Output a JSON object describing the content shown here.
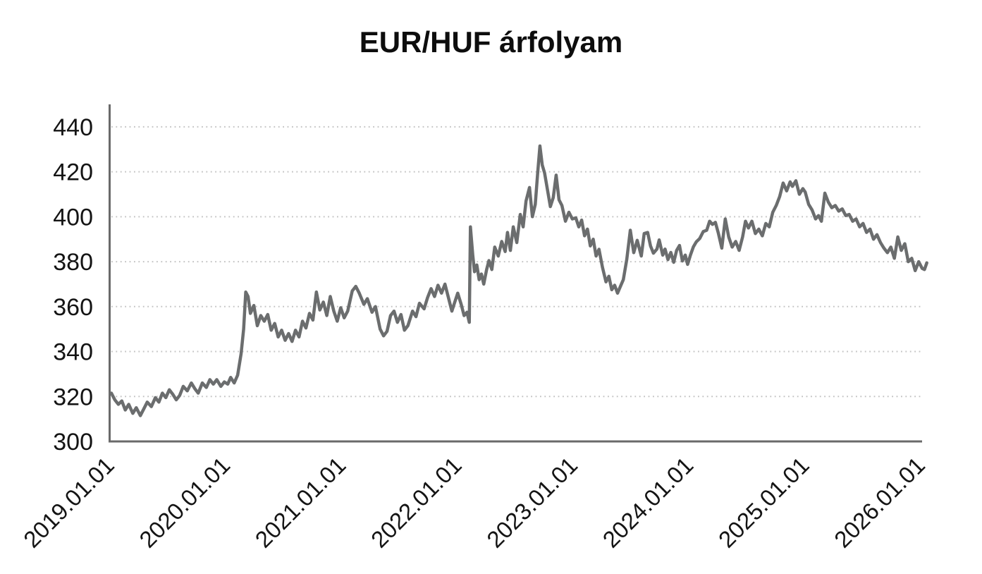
{
  "chart_data": {
    "type": "line",
    "title": "EUR/HUF árfolyam",
    "legend": "none",
    "grid": {
      "show": true,
      "style": "dotted",
      "color": "#c3c3c3"
    },
    "axis_color": "#6a6a6a",
    "label_color": "#141414",
    "y_axis": {
      "min": 300,
      "max": 450,
      "tick_step": 20,
      "tick_labels": [
        "300",
        "320",
        "340",
        "360",
        "380",
        "400",
        "420",
        "440"
      ],
      "tick_values": [
        300,
        320,
        340,
        360,
        380,
        400,
        420,
        440
      ]
    },
    "x_axis": {
      "range_years": [
        0,
        7.05
      ],
      "ticks": [
        {
          "label": "2019.01.01",
          "t": 0
        },
        {
          "label": "2020.01.01",
          "t": 1
        },
        {
          "label": "2021.01.01",
          "t": 2
        },
        {
          "label": "2022.01.01",
          "t": 3
        },
        {
          "label": "2023.01.01",
          "t": 4
        },
        {
          "label": "2024.01.01",
          "t": 5
        },
        {
          "label": "2025.01.01",
          "t": 6
        },
        {
          "label": "2026.01.01",
          "t": 7
        }
      ]
    },
    "series": [
      {
        "name": "EUR/HUF",
        "color": "#6b6d6e",
        "stroke_width": 4.5,
        "points": [
          [
            0,
            321.5
          ],
          [
            0.03,
            318.5
          ],
          [
            0.06,
            316.5
          ],
          [
            0.09,
            318
          ],
          [
            0.12,
            314
          ],
          [
            0.15,
            316.5
          ],
          [
            0.185,
            312.5
          ],
          [
            0.215,
            315
          ],
          [
            0.25,
            311.5
          ],
          [
            0.28,
            314.5
          ],
          [
            0.31,
            317.5
          ],
          [
            0.345,
            315.5
          ],
          [
            0.38,
            319.5
          ],
          [
            0.41,
            317.5
          ],
          [
            0.44,
            321.5
          ],
          [
            0.47,
            319.5
          ],
          [
            0.5,
            323
          ],
          [
            0.53,
            321
          ],
          [
            0.56,
            318.5
          ],
          [
            0.59,
            320.5
          ],
          [
            0.62,
            324.5
          ],
          [
            0.655,
            322.5
          ],
          [
            0.69,
            326
          ],
          [
            0.72,
            323.5
          ],
          [
            0.75,
            321.5
          ],
          [
            0.785,
            326
          ],
          [
            0.82,
            324
          ],
          [
            0.85,
            327.5
          ],
          [
            0.88,
            325.5
          ],
          [
            0.91,
            327.5
          ],
          [
            0.945,
            324.5
          ],
          [
            0.975,
            326.5
          ],
          [
            1.005,
            325.5
          ],
          [
            1.03,
            328.5
          ],
          [
            1.06,
            326
          ],
          [
            1.09,
            329.5
          ],
          [
            1.12,
            339
          ],
          [
            1.142,
            350
          ],
          [
            1.16,
            366.5
          ],
          [
            1.18,
            364.5
          ],
          [
            1.2,
            357
          ],
          [
            1.23,
            360.5
          ],
          [
            1.26,
            351.5
          ],
          [
            1.29,
            356
          ],
          [
            1.32,
            353.5
          ],
          [
            1.35,
            356.5
          ],
          [
            1.38,
            349.5
          ],
          [
            1.41,
            352.5
          ],
          [
            1.44,
            346.5
          ],
          [
            1.47,
            349.5
          ],
          [
            1.5,
            345
          ],
          [
            1.53,
            348
          ],
          [
            1.56,
            344.5
          ],
          [
            1.59,
            349.5
          ],
          [
            1.62,
            346.5
          ],
          [
            1.65,
            353.5
          ],
          [
            1.68,
            350.5
          ],
          [
            1.71,
            357
          ],
          [
            1.74,
            354
          ],
          [
            1.77,
            366.5
          ],
          [
            1.8,
            358.5
          ],
          [
            1.83,
            362
          ],
          [
            1.86,
            356
          ],
          [
            1.89,
            364.5
          ],
          [
            1.92,
            358
          ],
          [
            1.95,
            353.5
          ],
          [
            1.98,
            359.5
          ],
          [
            2.01,
            355
          ],
          [
            2.04,
            358
          ],
          [
            2.08,
            367
          ],
          [
            2.11,
            369
          ],
          [
            2.14,
            366
          ],
          [
            2.18,
            361
          ],
          [
            2.21,
            363.5
          ],
          [
            2.25,
            357.5
          ],
          [
            2.28,
            360
          ],
          [
            2.32,
            350
          ],
          [
            2.35,
            347
          ],
          [
            2.38,
            349
          ],
          [
            2.41,
            356
          ],
          [
            2.44,
            358
          ],
          [
            2.47,
            353
          ],
          [
            2.5,
            356.5
          ],
          [
            2.53,
            349.5
          ],
          [
            2.56,
            351.5
          ],
          [
            2.6,
            358
          ],
          [
            2.63,
            355.5
          ],
          [
            2.66,
            361.5
          ],
          [
            2.7,
            359
          ],
          [
            2.73,
            364
          ],
          [
            2.76,
            368
          ],
          [
            2.79,
            364.5
          ],
          [
            2.82,
            369.5
          ],
          [
            2.85,
            366
          ],
          [
            2.88,
            370
          ],
          [
            2.91,
            364
          ],
          [
            2.94,
            358
          ],
          [
            2.965,
            362
          ],
          [
            2.99,
            366
          ],
          [
            3.02,
            361
          ],
          [
            3.045,
            356
          ],
          [
            3.07,
            357.5
          ],
          [
            3.09,
            353
          ],
          [
            3.1,
            395.5
          ],
          [
            3.12,
            383
          ],
          [
            3.135,
            375.5
          ],
          [
            3.155,
            378.5
          ],
          [
            3.175,
            372
          ],
          [
            3.195,
            374.5
          ],
          [
            3.215,
            370
          ],
          [
            3.24,
            376.5
          ],
          [
            3.26,
            380.5
          ],
          [
            3.285,
            376.5
          ],
          [
            3.31,
            386.5
          ],
          [
            3.34,
            382.5
          ],
          [
            3.37,
            389
          ],
          [
            3.4,
            384.5
          ],
          [
            3.42,
            393
          ],
          [
            3.445,
            385
          ],
          [
            3.47,
            395.5
          ],
          [
            3.5,
            388.5
          ],
          [
            3.53,
            401
          ],
          [
            3.555,
            395.5
          ],
          [
            3.58,
            407
          ],
          [
            3.61,
            413
          ],
          [
            3.635,
            400
          ],
          [
            3.66,
            405.5
          ],
          [
            3.68,
            419
          ],
          [
            3.7,
            431.5
          ],
          [
            3.72,
            423
          ],
          [
            3.74,
            419.5
          ],
          [
            3.765,
            412
          ],
          [
            3.79,
            404.5
          ],
          [
            3.815,
            408.5
          ],
          [
            3.84,
            418.5
          ],
          [
            3.865,
            407.5
          ],
          [
            3.89,
            405
          ],
          [
            3.92,
            398
          ],
          [
            3.95,
            402
          ],
          [
            3.98,
            399
          ],
          [
            4.01,
            399.5
          ],
          [
            4.035,
            395.5
          ],
          [
            4.06,
            398.5
          ],
          [
            4.085,
            391.5
          ],
          [
            4.11,
            394.5
          ],
          [
            4.135,
            387
          ],
          [
            4.16,
            390
          ],
          [
            4.185,
            382.5
          ],
          [
            4.21,
            385.5
          ],
          [
            4.24,
            377.5
          ],
          [
            4.27,
            371
          ],
          [
            4.295,
            373.5
          ],
          [
            4.32,
            367.5
          ],
          [
            4.345,
            369.5
          ],
          [
            4.37,
            366
          ],
          [
            4.395,
            369
          ],
          [
            4.42,
            372
          ],
          [
            4.45,
            381
          ],
          [
            4.48,
            394
          ],
          [
            4.51,
            384
          ],
          [
            4.54,
            389.5
          ],
          [
            4.575,
            382.5
          ],
          [
            4.6,
            392.5
          ],
          [
            4.63,
            393
          ],
          [
            4.655,
            387
          ],
          [
            4.68,
            383.8
          ],
          [
            4.71,
            385.6
          ],
          [
            4.73,
            389.7
          ],
          [
            4.76,
            382.9
          ],
          [
            4.78,
            385.6
          ],
          [
            4.805,
            380.9
          ],
          [
            4.83,
            384.1
          ],
          [
            4.855,
            379.7
          ],
          [
            4.88,
            385
          ],
          [
            4.905,
            387.2
          ],
          [
            4.93,
            380.3
          ],
          [
            4.955,
            382.9
          ],
          [
            4.975,
            378.8
          ],
          [
            5,
            383
          ],
          [
            5.025,
            386.6
          ],
          [
            5.05,
            388.8
          ],
          [
            5.08,
            390.3
          ],
          [
            5.11,
            393.4
          ],
          [
            5.14,
            394
          ],
          [
            5.165,
            398
          ],
          [
            5.19,
            396.6
          ],
          [
            5.215,
            397.5
          ],
          [
            5.24,
            392.8
          ],
          [
            5.27,
            386
          ],
          [
            5.3,
            399
          ],
          [
            5.33,
            391
          ],
          [
            5.36,
            386.5
          ],
          [
            5.39,
            389
          ],
          [
            5.42,
            385
          ],
          [
            5.45,
            391
          ],
          [
            5.475,
            398
          ],
          [
            5.5,
            395
          ],
          [
            5.53,
            398
          ],
          [
            5.56,
            392.5
          ],
          [
            5.59,
            394.5
          ],
          [
            5.62,
            391.5
          ],
          [
            5.65,
            397
          ],
          [
            5.68,
            395.5
          ],
          [
            5.71,
            402
          ],
          [
            5.74,
            405
          ],
          [
            5.77,
            409
          ],
          [
            5.8,
            415
          ],
          [
            5.83,
            411.5
          ],
          [
            5.86,
            415.5
          ],
          [
            5.88,
            413.5
          ],
          [
            5.91,
            416
          ],
          [
            5.94,
            410
          ],
          [
            5.97,
            412.5
          ],
          [
            5.99,
            411
          ],
          [
            6.02,
            405.5
          ],
          [
            6.05,
            403
          ],
          [
            6.08,
            399
          ],
          [
            6.105,
            400.5
          ],
          [
            6.13,
            398
          ],
          [
            6.16,
            410.5
          ],
          [
            6.19,
            406.5
          ],
          [
            6.22,
            404
          ],
          [
            6.25,
            405
          ],
          [
            6.28,
            402.5
          ],
          [
            6.31,
            403.5
          ],
          [
            6.34,
            400.5
          ],
          [
            6.37,
            401
          ],
          [
            6.4,
            398
          ],
          [
            6.43,
            399
          ],
          [
            6.46,
            395.5
          ],
          [
            6.49,
            397
          ],
          [
            6.52,
            393
          ],
          [
            6.55,
            394.5
          ],
          [
            6.58,
            390
          ],
          [
            6.61,
            392
          ],
          [
            6.64,
            388.5
          ],
          [
            6.67,
            386
          ],
          [
            6.7,
            384
          ],
          [
            6.73,
            386.5
          ],
          [
            6.76,
            381.5
          ],
          [
            6.79,
            391
          ],
          [
            6.82,
            385
          ],
          [
            6.85,
            388
          ],
          [
            6.88,
            380
          ],
          [
            6.91,
            381.5
          ],
          [
            6.94,
            376
          ],
          [
            6.97,
            380
          ],
          [
            7,
            377
          ],
          [
            7.02,
            376.5
          ],
          [
            7.04,
            379.5
          ]
        ]
      }
    ]
  }
}
